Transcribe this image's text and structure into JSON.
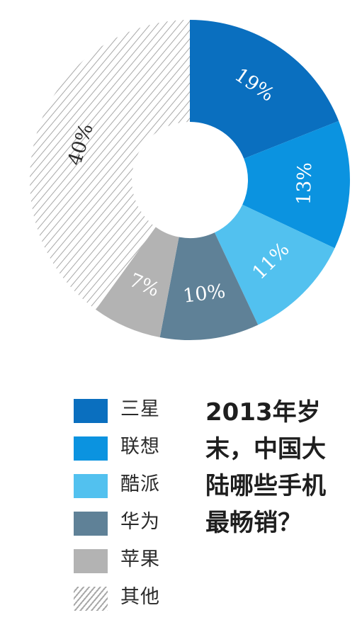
{
  "chart_data": {
    "type": "pie",
    "style": "donut",
    "title": "2013年岁末，中国大陆哪些手机最畅销？",
    "slices": [
      {
        "name": "三星",
        "value": 19,
        "label": "19%",
        "color": "#0a6fbf"
      },
      {
        "name": "联想",
        "value": 13,
        "label": "13%",
        "color": "#0b93e0"
      },
      {
        "name": "酷派",
        "value": 11,
        "label": "11%",
        "color": "#52c1ef"
      },
      {
        "name": "华为",
        "value": 10,
        "label": "10%",
        "color": "#5f8197"
      },
      {
        "name": "苹果",
        "value": 7,
        "label": "7%",
        "color": "#b3b3b3"
      },
      {
        "name": "其他",
        "value": 40,
        "label": "40%",
        "color": "hatched"
      }
    ],
    "legend_placement": "bottom-left"
  },
  "legend": {
    "items": [
      "三星",
      "联想",
      "酷派",
      "华为",
      "苹果",
      "其他"
    ]
  },
  "title_lines": [
    "2013年岁",
    "末，中国大",
    "陆哪些手机",
    "最畅销？"
  ]
}
